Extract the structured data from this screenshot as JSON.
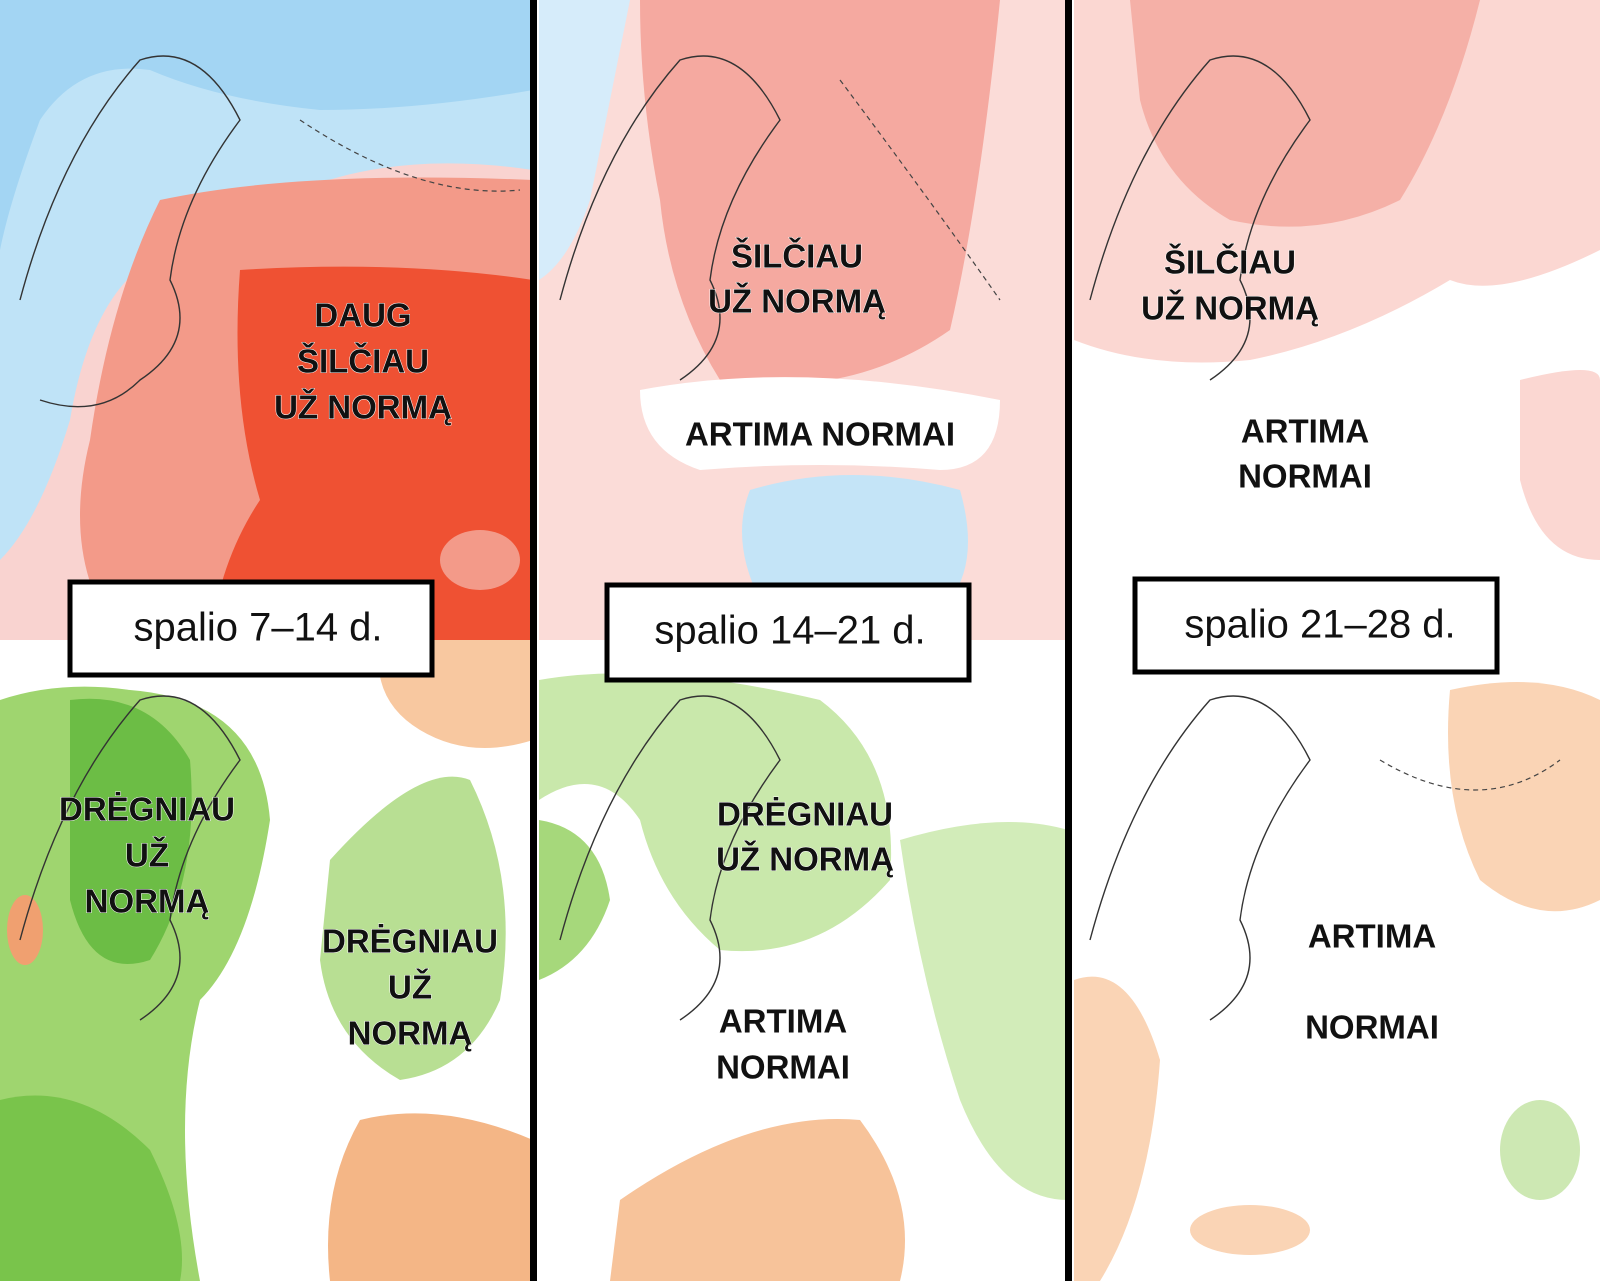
{
  "panels": [
    {
      "period": "spalio 7–14 d.",
      "temperature_labels": [
        [
          "DAUG",
          "ŠILČIAU",
          "UŽ NORMĄ"
        ]
      ],
      "precipitation_labels": [
        [
          "DRĖGNIAU",
          "UŽ",
          "NORMĄ"
        ],
        [
          "DRĖGNIAU",
          "UŽ",
          "NORMĄ"
        ]
      ]
    },
    {
      "period": "spalio 14–21 d.",
      "temperature_labels": [
        [
          "ŠILČIAU",
          "UŽ NORMĄ"
        ],
        [
          "ARTIMA NORMAI"
        ]
      ],
      "precipitation_labels": [
        [
          "DRĖGNIAU",
          "UŽ NORMĄ"
        ],
        [
          "ARTIMA",
          "NORMAI"
        ]
      ]
    },
    {
      "period": "spalio 21–28 d.",
      "temperature_labels": [
        [
          "ŠILČIAU",
          "UŽ NORMĄ"
        ],
        [
          "ARTIMA",
          "NORMAI"
        ]
      ],
      "precipitation_labels": [
        [
          "ARTIMA",
          "NORMAI"
        ]
      ]
    }
  ]
}
